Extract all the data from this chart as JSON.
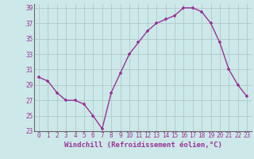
{
  "x": [
    0,
    1,
    2,
    3,
    4,
    5,
    6,
    7,
    8,
    9,
    10,
    11,
    12,
    13,
    14,
    15,
    16,
    17,
    18,
    19,
    20,
    21,
    22,
    23
  ],
  "y": [
    30.0,
    29.5,
    28.0,
    27.0,
    27.0,
    26.5,
    25.0,
    23.3,
    28.0,
    30.5,
    33.0,
    34.5,
    36.0,
    37.0,
    37.5,
    38.0,
    39.0,
    39.0,
    38.5,
    37.0,
    34.5,
    31.0,
    29.0,
    27.5
  ],
  "line_color": "#993399",
  "marker": "+",
  "xlabel": "Windchill (Refroidissement éolien,°C)",
  "xlim": [
    -0.5,
    23.5
  ],
  "ylim": [
    23,
    39.5
  ],
  "yticks": [
    23,
    25,
    27,
    29,
    31,
    33,
    35,
    37,
    39
  ],
  "xticks": [
    0,
    1,
    2,
    3,
    4,
    5,
    6,
    7,
    8,
    9,
    10,
    11,
    12,
    13,
    14,
    15,
    16,
    17,
    18,
    19,
    20,
    21,
    22,
    23
  ],
  "bg_color": "#cce8e8",
  "grid_color": "#b0c8c8",
  "label_color": "#993399",
  "xlabel_fontsize": 6.5,
  "tick_fontsize": 5.5,
  "markersize": 3,
  "linewidth": 1.0
}
